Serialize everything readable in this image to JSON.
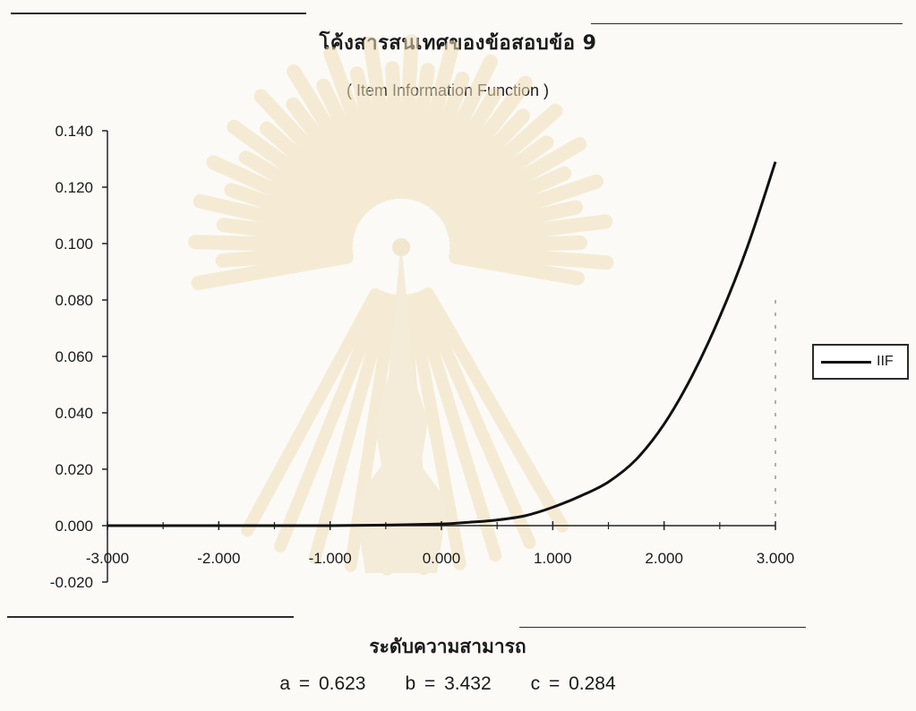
{
  "chart_data": {
    "type": "line",
    "title": "โค้งสารสนเทศของข้อสอบข้อ  9",
    "subtitle": "( Item Information Function )",
    "xlabel": "ระดับความสามารถ",
    "ylabel": "",
    "xlim": [
      -3.0,
      3.0
    ],
    "ylim": [
      -0.02,
      0.14
    ],
    "x_ticks": [
      "-3.000",
      "-2.000",
      "-1.000",
      "0.000",
      "1.000",
      "2.000",
      "3.000"
    ],
    "y_ticks": [
      "0.140",
      "0.120",
      "0.100",
      "0.080",
      "0.060",
      "0.040",
      "0.020",
      "0.000",
      "-0.020"
    ],
    "legend_position": "right",
    "series": [
      {
        "name": "IIF",
        "color": "#111111",
        "x": [
          -3.0,
          -2.5,
          -2.0,
          -1.5,
          -1.0,
          -0.5,
          0.0,
          0.25,
          0.5,
          0.75,
          1.0,
          1.25,
          1.5,
          1.75,
          2.0,
          2.25,
          2.5,
          2.75,
          3.0
        ],
        "values": [
          0.0,
          0.0,
          0.0,
          0.0,
          0.0,
          0.0002,
          0.0006,
          0.0012,
          0.002,
          0.0035,
          0.0065,
          0.0105,
          0.0155,
          0.0235,
          0.036,
          0.053,
          0.074,
          0.099,
          0.129
        ]
      }
    ]
  },
  "params": {
    "a": "a  = 0.623",
    "b": "b  = 3.432",
    "c": "c  =  0.284"
  },
  "legend": {
    "label": "IIF"
  }
}
